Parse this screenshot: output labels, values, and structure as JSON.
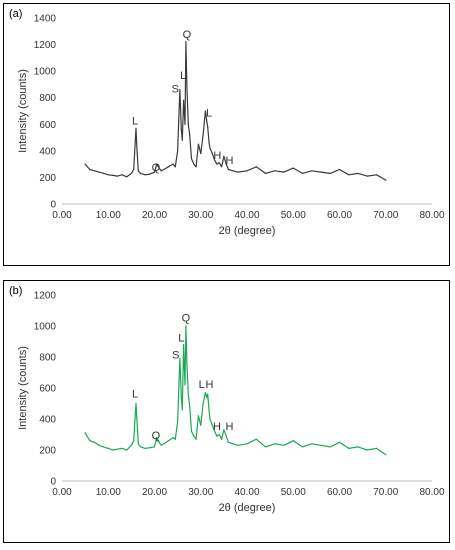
{
  "chart_data": [
    {
      "panel_label": "(a)",
      "type": "line",
      "color": "#3a3a3a",
      "xlabel": "2θ (degree)",
      "ylabel": "Intensity (counts)",
      "xlim": [
        0,
        80
      ],
      "ylim": [
        0,
        1400
      ],
      "xticks": [
        "0.00",
        "10.00",
        "20.00",
        "30.00",
        "40.00",
        "50.00",
        "60.00",
        "70.00",
        "80.00"
      ],
      "yticks": [
        "0",
        "200",
        "400",
        "600",
        "800",
        "1000",
        "1200",
        "1400"
      ],
      "grid": false,
      "series": [
        {
          "x": [
            5,
            6,
            7,
            8,
            9,
            10,
            11,
            12,
            13,
            14,
            15,
            15.5,
            16,
            16.2,
            16.5,
            17,
            18,
            19,
            20,
            20.5,
            21,
            21.5,
            22,
            23,
            24,
            24.5,
            25,
            25.5,
            25.8,
            26,
            26.3,
            26.6,
            26.8,
            27,
            27.3,
            27.6,
            28,
            28.5,
            29,
            29.5,
            30,
            30.5,
            31,
            31.3,
            31.5,
            31.8,
            32,
            32.5,
            33,
            33.5,
            34,
            34.5,
            35,
            35.5,
            36,
            37,
            38,
            40,
            42,
            44,
            46,
            48,
            50,
            52,
            54,
            56,
            58,
            60,
            62,
            64,
            66,
            68,
            70
          ],
          "y": [
            300,
            260,
            250,
            240,
            230,
            220,
            215,
            210,
            220,
            205,
            230,
            260,
            570,
            420,
            250,
            230,
            220,
            225,
            240,
            300,
            270,
            250,
            260,
            280,
            300,
            280,
            400,
            860,
            560,
            480,
            780,
            600,
            1220,
            880,
            600,
            520,
            340,
            300,
            280,
            450,
            380,
            520,
            700,
            620,
            580,
            460,
            420,
            380,
            330,
            300,
            310,
            280,
            360,
            300,
            260,
            250,
            240,
            250,
            280,
            230,
            250,
            240,
            270,
            230,
            250,
            240,
            230,
            260,
            220,
            230,
            210,
            220,
            180
          ]
        }
      ],
      "annotations": [
        {
          "text": "L",
          "x": 15.8,
          "y": 600
        },
        {
          "text": "Q",
          "x": 20.3,
          "y": 250
        },
        {
          "text": "S",
          "x": 24.5,
          "y": 840
        },
        {
          "text": "L",
          "x": 26.2,
          "y": 940
        },
        {
          "text": "Q",
          "x": 27.0,
          "y": 1250
        },
        {
          "text": "L",
          "x": 31.8,
          "y": 660
        },
        {
          "text": "H",
          "x": 33.6,
          "y": 340
        },
        {
          "text": "H",
          "x": 36.2,
          "y": 300
        }
      ]
    },
    {
      "panel_label": "(b)",
      "type": "line",
      "color": "#1aaa55",
      "xlabel": "2θ (degree)",
      "ylabel": "Intensity (counts)",
      "xlim": [
        0,
        80
      ],
      "ylim": [
        0,
        1200
      ],
      "xticks": [
        "0.00",
        "10.00",
        "20.00",
        "30.00",
        "40.00",
        "50.00",
        "60.00",
        "70.00",
        "80.00"
      ],
      "yticks": [
        "0",
        "200",
        "400",
        "600",
        "800",
        "1000",
        "1200"
      ],
      "grid": false,
      "series": [
        {
          "x": [
            5,
            6,
            7,
            8,
            9,
            10,
            11,
            12,
            13,
            14,
            15,
            15.5,
            16,
            16.2,
            16.5,
            17,
            18,
            19,
            20,
            20.5,
            21,
            21.5,
            22,
            23,
            24,
            24.5,
            25,
            25.5,
            25.8,
            26,
            26.3,
            26.6,
            26.8,
            27,
            27.3,
            27.6,
            28,
            28.5,
            29,
            29.5,
            30,
            30.5,
            31,
            31.3,
            31.5,
            31.8,
            32,
            32.5,
            33,
            33.5,
            34,
            34.5,
            35,
            35.5,
            36,
            37,
            38,
            40,
            42,
            44,
            46,
            48,
            50,
            52,
            54,
            56,
            58,
            60,
            62,
            64,
            66,
            68,
            70
          ],
          "y": [
            310,
            260,
            250,
            230,
            220,
            210,
            200,
            205,
            210,
            200,
            230,
            260,
            500,
            400,
            240,
            220,
            210,
            215,
            220,
            280,
            250,
            230,
            240,
            260,
            280,
            270,
            380,
            790,
            540,
            460,
            880,
            620,
            1000,
            760,
            560,
            480,
            320,
            290,
            270,
            420,
            360,
            500,
            570,
            540,
            560,
            450,
            400,
            360,
            320,
            290,
            300,
            270,
            330,
            290,
            250,
            240,
            230,
            240,
            270,
            220,
            240,
            230,
            260,
            220,
            240,
            230,
            220,
            250,
            210,
            220,
            200,
            210,
            170
          ]
        }
      ],
      "annotations": [
        {
          "text": "L",
          "x": 15.8,
          "y": 540
        },
        {
          "text": "Q",
          "x": 20.3,
          "y": 270
        },
        {
          "text": "S",
          "x": 24.6,
          "y": 790
        },
        {
          "text": "L",
          "x": 25.8,
          "y": 900
        },
        {
          "text": "Q",
          "x": 26.8,
          "y": 1030
        },
        {
          "text": "L",
          "x": 30.2,
          "y": 600
        },
        {
          "text": "H",
          "x": 31.9,
          "y": 600
        },
        {
          "text": "H",
          "x": 33.5,
          "y": 330
        },
        {
          "text": "H",
          "x": 36.2,
          "y": 330
        }
      ]
    }
  ]
}
